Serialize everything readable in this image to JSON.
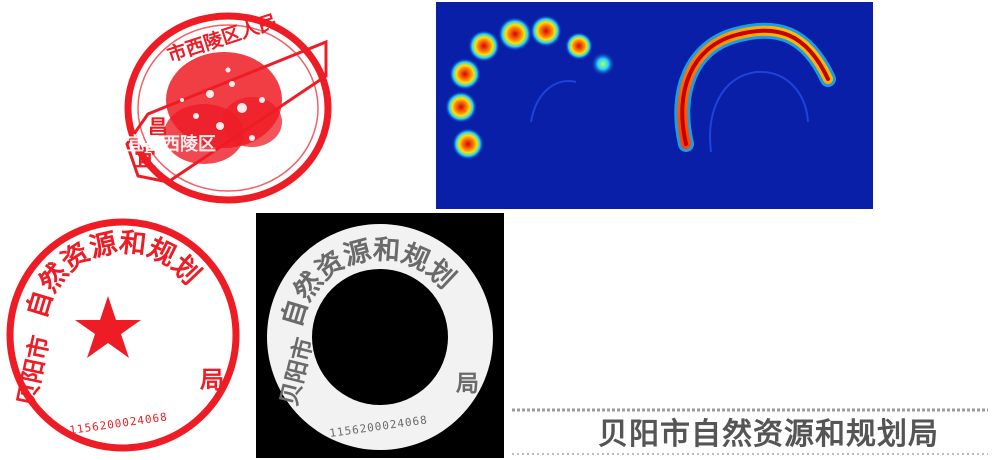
{
  "stamp_top": {
    "arc_text": "市西陵区人民",
    "box_char_left": "宜",
    "box_char_mid": "昌",
    "overlay_text": "宜昌西陵区",
    "colors": {
      "ink": "#ee1c25"
    }
  },
  "heatmap": {
    "colors": {
      "background": "#0a1fa8",
      "hot": "#d40000",
      "warm": "#ffd400",
      "cool": "#1fb7ff"
    }
  },
  "stamp_bottom": {
    "arc_text": "自然资源和规划",
    "left_text": "贝阳市",
    "right_text": "局",
    "code": "1156200024068",
    "icon": "star-icon",
    "colors": {
      "ink": "#ee1c25"
    }
  },
  "ring_mask": {
    "arc_text": "自然资源和规划",
    "left_text": "贝阳市",
    "right_text": "局",
    "code": "1156200024068",
    "colors": {
      "ring": "#f2f2f2",
      "text": "#6a6a6a",
      "background": "#000000"
    }
  },
  "unwrapped_strip": {
    "text": "贝阳市自然资源和规划局",
    "colors": {
      "text": "#555555"
    }
  }
}
